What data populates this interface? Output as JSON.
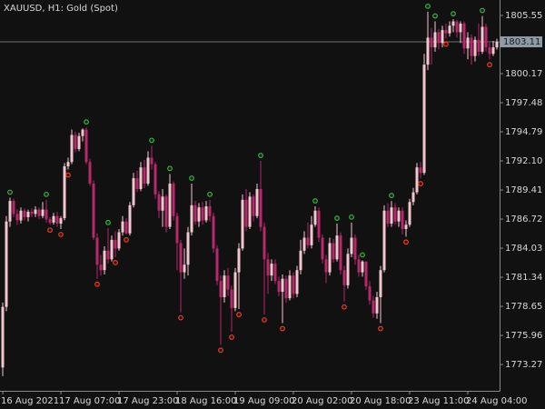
{
  "chart_data": {
    "type": "candlestick",
    "title": "XAUUSD, H1:  Gold (Spot)",
    "categories": [
      "16 Aug 2021",
      null,
      null,
      null,
      null,
      null,
      null,
      null,
      null,
      null,
      null,
      null,
      null,
      null,
      null,
      null,
      "17 Aug 07:00",
      null,
      null,
      null,
      null,
      null,
      null,
      null,
      null,
      null,
      null,
      null,
      null,
      null,
      null,
      null,
      "17 Aug 23:00",
      null,
      null,
      null,
      null,
      null,
      null,
      null,
      null,
      null,
      null,
      null,
      null,
      null,
      null,
      null,
      "18 Aug 16:00",
      null,
      null,
      null,
      null,
      null,
      null,
      null,
      null,
      null,
      null,
      null,
      null,
      null,
      null,
      null,
      "19 Aug 09:00",
      null,
      null,
      null,
      null,
      null,
      null,
      null,
      null,
      null,
      null,
      null,
      null,
      null,
      null,
      null,
      "20 Aug 02:00",
      null,
      null,
      null,
      null,
      null,
      null,
      null,
      null,
      null,
      null,
      null,
      null,
      null,
      null,
      null,
      "20 Aug 18:00",
      null,
      null,
      null,
      null,
      null,
      null,
      null,
      null,
      null,
      null,
      null,
      null,
      null,
      null,
      null,
      "23 Aug 11:00",
      null,
      null,
      null,
      null,
      null,
      null,
      null,
      null,
      null,
      null,
      null,
      null,
      null,
      null,
      null,
      "24 Aug 04:00",
      null,
      null,
      null,
      null,
      null,
      null,
      null,
      null
    ],
    "open": [
      1773.0,
      1778.6,
      1786.5,
      1788.4,
      1787.2,
      1786.6,
      1787.5,
      1786.9,
      1787.4,
      1787.2,
      1787.6,
      1787.0,
      1787.6,
      1786.7,
      1786.4,
      1787.0,
      1786.3,
      1786.8,
      1791.6,
      1792.0,
      1794.5,
      1793.2,
      1794.4,
      1795.0,
      1792.0,
      1790.0,
      1785.0,
      1782.5,
      1782.0,
      1783.8,
      1783.0,
      1784.8,
      1784.0,
      1785.5,
      1786.5,
      1785.4,
      1788.0,
      1790.5,
      1789.5,
      1791.5,
      1790.0,
      1792.4,
      1791.8,
      1789.0,
      1787.5,
      1788.8,
      1786.0,
      1790.0,
      1787.0,
      1784.5,
      1781.8,
      1782.5,
      1785.5,
      1788.0,
      1786.5,
      1787.8,
      1786.6,
      1787.9,
      1787.0,
      1784.0,
      1781.0,
      1779.5,
      1781.5,
      1780.2,
      1778.5,
      1781.8,
      1784.0,
      1788.5,
      1786.0,
      1788.8,
      1787.0,
      1789.5,
      1786.0,
      1783.0,
      1781.5,
      1782.6,
      1781.0,
      1780.0,
      1781.2,
      1779.4,
      1781.5,
      1779.8,
      1782.0,
      1783.8,
      1785.0,
      1784.3,
      1786.2,
      1787.5,
      1785.0,
      1783.0,
      1781.8,
      1784.5,
      1783.0,
      1785.2,
      1782.0,
      1780.6,
      1783.5,
      1785.0,
      1783.0,
      1781.8,
      1782.8,
      1780.5,
      1779.2,
      1778.0,
      1779.5,
      1782.0,
      1787.5,
      1786.3,
      1787.8,
      1786.5,
      1787.5,
      1785.8,
      1786.2,
      1788.3,
      1789.2,
      1791.5,
      1791.0,
      1801.0,
      1803.5,
      1802.6,
      1804.0,
      1803.0,
      1804.2,
      1803.9,
      1804.6,
      1805.0,
      1804.0,
      1804.8,
      1802.5,
      1803.5,
      1801.8,
      1803.3,
      1802.2,
      1804.5,
      1802.6,
      1802.0,
      1802.6
    ],
    "high": [
      1779.0,
      1787.0,
      1788.7,
      1788.6,
      1787.6,
      1787.8,
      1787.7,
      1787.6,
      1787.7,
      1787.9,
      1787.8,
      1788.3,
      1788.5,
      1786.9,
      1787.3,
      1787.4,
      1787.0,
      1791.9,
      1792.4,
      1795.0,
      1794.8,
      1794.7,
      1795.1,
      1795.2,
      1792.3,
      1790.3,
      1785.4,
      1783.4,
      1784.2,
      1785.9,
      1785.2,
      1785.6,
      1785.8,
      1787.0,
      1786.8,
      1788.3,
      1791.0,
      1791.2,
      1792.0,
      1792.2,
      1793.0,
      1793.5,
      1792.0,
      1789.3,
      1789.5,
      1789.0,
      1790.9,
      1790.2,
      1787.3,
      1784.8,
      1784.0,
      1786.0,
      1790.0,
      1788.4,
      1788.2,
      1788.3,
      1788.4,
      1788.5,
      1787.3,
      1784.3,
      1781.5,
      1782.0,
      1782.2,
      1780.6,
      1782.2,
      1784.5,
      1789.0,
      1789.5,
      1789.2,
      1789.0,
      1790.0,
      1792.1,
      1786.4,
      1783.6,
      1783.0,
      1783.0,
      1781.4,
      1781.6,
      1781.5,
      1782.0,
      1781.8,
      1782.4,
      1784.8,
      1785.6,
      1786.4,
      1787.0,
      1787.9,
      1787.8,
      1785.3,
      1783.4,
      1785.0,
      1784.9,
      1786.3,
      1785.5,
      1782.4,
      1784.0,
      1786.4,
      1785.3,
      1783.4,
      1782.9,
      1782.8,
      1781.0,
      1779.6,
      1780.0,
      1782.4,
      1788.0,
      1788.2,
      1788.4,
      1788.2,
      1787.8,
      1787.8,
      1786.6,
      1788.6,
      1789.6,
      1791.9,
      1792.0,
      1802.0,
      1805.9,
      1804.4,
      1805.0,
      1804.3,
      1804.6,
      1804.8,
      1805.0,
      1805.2,
      1805.1,
      1805.0,
      1805.0,
      1804.0,
      1803.8,
      1803.6,
      1804.8,
      1805.5,
      1804.8,
      1803.0,
      1803.2,
      1803.4
    ],
    "low": [
      1772.2,
      1778.2,
      1786.0,
      1786.9,
      1786.2,
      1786.3,
      1786.6,
      1786.5,
      1786.9,
      1786.9,
      1786.7,
      1786.8,
      1786.4,
      1786.2,
      1786.2,
      1786.0,
      1785.8,
      1786.6,
      1791.3,
      1791.8,
      1792.9,
      1793.0,
      1793.9,
      1791.8,
      1789.8,
      1784.8,
      1781.2,
      1781.5,
      1781.6,
      1782.6,
      1782.8,
      1783.2,
      1783.8,
      1785.2,
      1785.3,
      1785.2,
      1787.8,
      1789.2,
      1789.3,
      1789.6,
      1789.8,
      1791.3,
      1788.6,
      1786.8,
      1786.0,
      1785.5,
      1785.8,
      1786.6,
      1782.0,
      1778.1,
      1781.2,
      1781.5,
      1785.2,
      1786.2,
      1786.0,
      1786.2,
      1786.4,
      1786.5,
      1783.6,
      1780.6,
      1775.1,
      1779.0,
      1779.6,
      1776.3,
      1778.2,
      1778.4,
      1783.8,
      1785.6,
      1785.8,
      1786.5,
      1786.8,
      1785.6,
      1777.9,
      1779.8,
      1781.0,
      1780.7,
      1779.6,
      1777.1,
      1779.0,
      1779.2,
      1779.4,
      1779.5,
      1781.6,
      1783.5,
      1784.0,
      1784.0,
      1786.0,
      1784.6,
      1782.6,
      1780.8,
      1781.5,
      1782.7,
      1782.8,
      1781.6,
      1779.1,
      1780.3,
      1783.2,
      1782.5,
      1781.4,
      1781.4,
      1780.2,
      1778.8,
      1777.6,
      1777.5,
      1777.1,
      1781.8,
      1786.0,
      1786.0,
      1786.2,
      1786.0,
      1785.3,
      1785.1,
      1786.0,
      1788.0,
      1789.0,
      1790.5,
      1790.8,
      1800.5,
      1801.0,
      1802.2,
      1802.4,
      1802.6,
      1803.4,
      1803.6,
      1804.0,
      1803.5,
      1803.0,
      1802.0,
      1801.5,
      1801.0,
      1801.3,
      1801.8,
      1802.0,
      1802.2,
      1801.5,
      1801.8,
      1802.4
    ],
    "close": [
      1778.6,
      1786.5,
      1788.4,
      1787.2,
      1786.6,
      1787.5,
      1786.9,
      1787.4,
      1787.2,
      1787.6,
      1787.0,
      1787.6,
      1786.7,
      1786.4,
      1787.0,
      1786.3,
      1786.8,
      1791.6,
      1792.0,
      1794.5,
      1793.2,
      1794.4,
      1795.0,
      1792.0,
      1790.0,
      1785.0,
      1782.5,
      1782.0,
      1783.8,
      1783.0,
      1784.8,
      1784.0,
      1785.5,
      1786.5,
      1785.4,
      1788.0,
      1790.5,
      1789.5,
      1791.5,
      1790.0,
      1792.4,
      1791.8,
      1789.0,
      1787.5,
      1788.8,
      1786.0,
      1790.0,
      1787.0,
      1784.5,
      1781.8,
      1782.5,
      1785.5,
      1788.0,
      1786.5,
      1787.8,
      1786.6,
      1787.9,
      1787.0,
      1784.0,
      1781.0,
      1779.5,
      1781.5,
      1780.2,
      1778.5,
      1781.8,
      1784.0,
      1788.5,
      1786.0,
      1788.8,
      1787.0,
      1789.5,
      1786.0,
      1783.0,
      1781.5,
      1782.6,
      1781.0,
      1780.0,
      1781.2,
      1779.4,
      1781.5,
      1779.8,
      1782.0,
      1783.8,
      1785.0,
      1784.3,
      1786.2,
      1787.5,
      1785.0,
      1783.0,
      1781.8,
      1784.5,
      1783.0,
      1785.2,
      1782.0,
      1780.6,
      1783.5,
      1785.0,
      1783.0,
      1781.8,
      1782.8,
      1780.5,
      1779.2,
      1778.0,
      1779.5,
      1782.0,
      1787.5,
      1786.3,
      1787.8,
      1786.5,
      1787.5,
      1785.8,
      1786.2,
      1788.3,
      1789.2,
      1791.5,
      1791.0,
      1801.0,
      1803.5,
      1802.6,
      1804.0,
      1803.0,
      1804.2,
      1803.9,
      1804.6,
      1805.0,
      1804.0,
      1804.8,
      1802.5,
      1803.5,
      1801.8,
      1803.3,
      1802.2,
      1804.5,
      1802.6,
      1802.0,
      1802.6,
      1803.11
    ],
    "fractals_up": {
      "at": [
        2,
        12,
        23,
        29,
        41,
        46,
        52,
        57,
        71,
        86,
        92,
        96,
        99,
        107,
        117,
        119,
        124,
        132
      ],
      "values": [
        1788.7,
        1788.5,
        1795.2,
        1785.9,
        1793.5,
        1790.9,
        1790.0,
        1788.5,
        1792.1,
        1787.9,
        1786.3,
        1786.4,
        1782.9,
        1788.4,
        1805.9,
        1805.0,
        1805.2,
        1805.5
      ]
    },
    "fractals_down": {
      "at": [
        13,
        16,
        18,
        26,
        31,
        34,
        49,
        60,
        63,
        65,
        72,
        77,
        94,
        104,
        111,
        115,
        122,
        134
      ],
      "values": [
        1786.2,
        1785.8,
        1791.3,
        1781.2,
        1783.2,
        1785.3,
        1778.1,
        1775.1,
        1776.3,
        1778.4,
        1777.9,
        1777.1,
        1779.1,
        1777.1,
        1785.1,
        1790.5,
        1803.4,
        1801.5
      ]
    },
    "current_price": 1803.11,
    "ylim": [
      1770.84,
      1806.98
    ],
    "yticks": [
      1805.55,
      1800.17,
      1797.48,
      1794.79,
      {
        "value": 1792.1,
        "label": "1792.10"
      },
      1789.41,
      1786.72,
      1784.03,
      1781.34,
      1778.65,
      1775.96,
      1773.27
    ],
    "up_color": "#f2c6d0",
    "down_color": "#b8286a",
    "fractal_up_color": "#3cb043",
    "fractal_down_color": "#e8401c"
  }
}
